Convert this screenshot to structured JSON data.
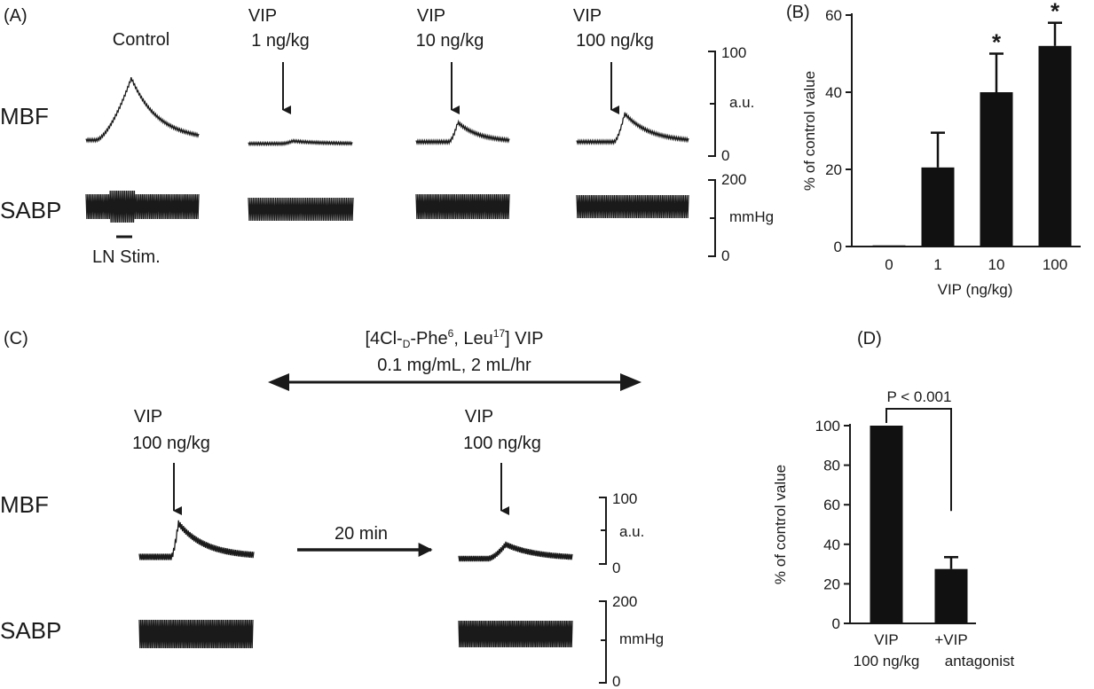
{
  "figure": {
    "panel_a": {
      "label": "(A)",
      "columns": [
        {
          "line1": "Control",
          "line2": ""
        },
        {
          "line1": "VIP",
          "line2": "1 ng/kg"
        },
        {
          "line1": "VIP",
          "line2": "10 ng/kg"
        },
        {
          "line1": "VIP",
          "line2": "100 ng/kg"
        }
      ],
      "mbf_label": "MBF",
      "sabp_label": "SABP",
      "stim_label": "LN Stim.",
      "mbf_scale": {
        "top": "100",
        "unit": "a.u.",
        "bottom": "0"
      },
      "sabp_scale": {
        "top": "200",
        "unit": "mmHg",
        "bottom": "0"
      }
    },
    "panel_c": {
      "label": "(C)",
      "antagonist_line1_a": "[4Cl-",
      "antagonist_sub": "D",
      "antagonist_line1_b": "-Phe",
      "antagonist_sup1": "6",
      "antagonist_line1_c": ", Leu",
      "antagonist_sup2": "17",
      "antagonist_line1_d": "] VIP",
      "antagonist_line2": "0.1 mg/mL, 2 mL/hr",
      "left_stim": {
        "line1": "VIP",
        "line2": "100 ng/kg"
      },
      "right_stim": {
        "line1": "VIP",
        "line2": "100 ng/kg"
      },
      "interval": "20 min",
      "mbf_label": "MBF",
      "sabp_label": "SABP",
      "mbf_scale": {
        "top": "100",
        "unit": "a.u.",
        "bottom": "0"
      },
      "sabp_scale": {
        "top": "200",
        "unit": "mmHg",
        "bottom": "0"
      }
    }
  },
  "chart_data": [
    {
      "panel": "(B)",
      "type": "bar",
      "categories": [
        "0",
        "1",
        "10",
        "100"
      ],
      "values": [
        0.3,
        20.5,
        40,
        52
      ],
      "errors": [
        0,
        9,
        10,
        6
      ],
      "significance": [
        "",
        "",
        "*",
        "*"
      ],
      "title": "",
      "xlabel": "VIP (ng/kg)",
      "ylabel": "% of control value",
      "ylim": [
        0,
        60
      ],
      "yticks": [
        "0",
        "20",
        "40",
        "60"
      ]
    },
    {
      "panel": "(D)",
      "type": "bar",
      "categories": [
        "VIP 100 ng/kg",
        "+VIP antagonist"
      ],
      "category_lines": [
        [
          "VIP",
          "100 ng/kg"
        ],
        [
          "+VIP",
          "antagonist"
        ]
      ],
      "values": [
        100,
        27.5
      ],
      "errors": [
        0,
        6
      ],
      "comparison": "P < 0.001",
      "title": "",
      "xlabel": "",
      "ylabel": "% of control value",
      "ylim": [
        0,
        100
      ],
      "yticks": [
        "0",
        "20",
        "40",
        "60",
        "80",
        "100"
      ]
    }
  ]
}
